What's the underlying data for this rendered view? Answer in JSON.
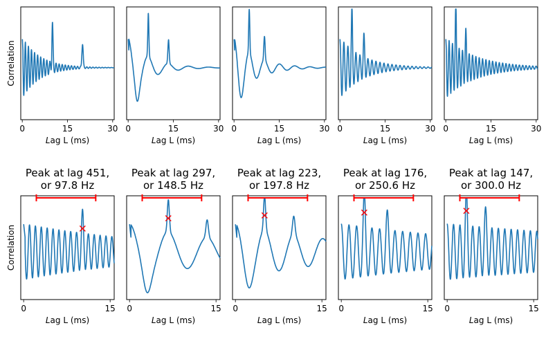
{
  "chart_data": [
    {
      "type": "line",
      "row": 1,
      "ylabel": "Correlation",
      "xlabel": "Lag L (ms)",
      "xlim": [
        -0.5,
        30.5
      ],
      "xticks": [
        0,
        15,
        30
      ],
      "series": [
        {
          "shape": {
            "peak_ms": 10,
            "freq_ms": 1.02,
            "decay": 0.17,
            "peak_gain": 1.0,
            "dip": 0.0,
            "start_high": true
          }
        }
      ]
    },
    {
      "type": "line",
      "row": 1,
      "ylabel": "",
      "xlabel": "Lag L (ms)",
      "xlim": [
        -0.5,
        30.5
      ],
      "xticks": [
        0,
        15,
        30
      ],
      "series": [
        {
          "shape": {
            "peak_ms": 6.7,
            "freq_ms": 6.7,
            "decay": 0.15,
            "peak_gain": 1.0,
            "dip": 0.35,
            "start_high": true
          }
        }
      ]
    },
    {
      "type": "line",
      "row": 1,
      "ylabel": "",
      "xlabel": "Lag L (ms)",
      "xlim": [
        -0.5,
        30.5
      ],
      "xticks": [
        0,
        15,
        30
      ],
      "series": [
        {
          "shape": {
            "peak_ms": 5.05,
            "freq_ms": 5.05,
            "decay": 0.14,
            "peak_gain": 1.0,
            "dip": 0.2,
            "start_high": true
          }
        }
      ]
    },
    {
      "type": "line",
      "row": 1,
      "ylabel": "",
      "xlabel": "Lag L (ms)",
      "xlim": [
        -0.5,
        30.5
      ],
      "xticks": [
        0,
        15,
        30
      ],
      "series": [
        {
          "shape": {
            "peak_ms": 3.99,
            "freq_ms": 1.33,
            "decay": 0.13,
            "peak_gain": 1.0,
            "dip": 0.0,
            "start_high": true
          }
        }
      ]
    },
    {
      "type": "line",
      "row": 1,
      "ylabel": "",
      "xlabel": "Lag L (ms)",
      "xlim": [
        -0.5,
        30.5
      ],
      "xticks": [
        0,
        15,
        30
      ],
      "series": [
        {
          "shape": {
            "peak_ms": 3.33,
            "freq_ms": 1.11,
            "decay": 0.1,
            "peak_gain": 1.0,
            "dip": 0.0,
            "start_high": true
          }
        }
      ]
    },
    {
      "type": "line",
      "row": 2,
      "title": "Peak at lag 451,\nor 97.8 Hz",
      "ylabel": "Correlation",
      "xlabel": "Lag L (ms)",
      "xlim": [
        -0.5,
        15.7
      ],
      "xticks": [
        0,
        15
      ],
      "range_bar_ms": [
        2.2,
        12.5
      ],
      "peak": {
        "lag_ms": 10.22,
        "y": 0.62
      },
      "series": [
        {
          "shape": {
            "peak_ms": 10.22,
            "freq_ms": 1.02,
            "decay": 0.04,
            "peak_gain": 0.6,
            "dip": 0.0,
            "start_high": true
          }
        }
      ]
    },
    {
      "type": "line",
      "row": 2,
      "title": "Peak at lag 297,\nor 148.5 Hz",
      "ylabel": "",
      "xlabel": "Lag L (ms)",
      "xlim": [
        -0.5,
        15.7
      ],
      "xticks": [
        0,
        15
      ],
      "range_bar_ms": [
        2.2,
        12.5
      ],
      "peak": {
        "lag_ms": 6.73,
        "y": 0.8
      },
      "series": [
        {
          "shape": {
            "peak_ms": 6.73,
            "freq_ms": 6.73,
            "decay": 0.05,
            "peak_gain": 0.8,
            "dip": 0.45,
            "start_high": true
          }
        }
      ]
    },
    {
      "type": "line",
      "row": 2,
      "title": "Peak at lag 223,\nor 197.8 Hz",
      "ylabel": "",
      "xlabel": "Lag L (ms)",
      "xlim": [
        -0.5,
        15.7
      ],
      "xticks": [
        0,
        15
      ],
      "range_bar_ms": [
        2.2,
        12.5
      ],
      "peak": {
        "lag_ms": 5.06,
        "y": 0.85
      },
      "series": [
        {
          "shape": {
            "peak_ms": 5.06,
            "freq_ms": 5.06,
            "decay": 0.05,
            "peak_gain": 0.85,
            "dip": 0.3,
            "start_high": true
          }
        }
      ]
    },
    {
      "type": "line",
      "row": 2,
      "title": "Peak at lag 176,\nor 250.6 Hz",
      "ylabel": "",
      "xlabel": "Lag L (ms)",
      "xlim": [
        -0.5,
        15.7
      ],
      "xticks": [
        0,
        15
      ],
      "range_bar_ms": [
        2.2,
        12.5
      ],
      "peak": {
        "lag_ms": 3.99,
        "y": 0.9
      },
      "series": [
        {
          "shape": {
            "peak_ms": 3.99,
            "freq_ms": 1.33,
            "decay": 0.03,
            "peak_gain": 0.9,
            "dip": 0.0,
            "start_high": false
          }
        }
      ]
    },
    {
      "type": "line",
      "row": 2,
      "title": "Peak at lag 147,\nor 300.0 Hz",
      "ylabel": "",
      "xlabel": "Lag L (ms)",
      "xlim": [
        -0.5,
        15.7
      ],
      "xticks": [
        0,
        15
      ],
      "range_bar_ms": [
        2.2,
        12.5
      ],
      "peak": {
        "lag_ms": 3.33,
        "y": 0.93
      },
      "series": [
        {
          "shape": {
            "peak_ms": 3.33,
            "freq_ms": 1.11,
            "decay": 0.02,
            "peak_gain": 0.93,
            "dip": 0.0,
            "start_high": false
          }
        }
      ]
    }
  ]
}
